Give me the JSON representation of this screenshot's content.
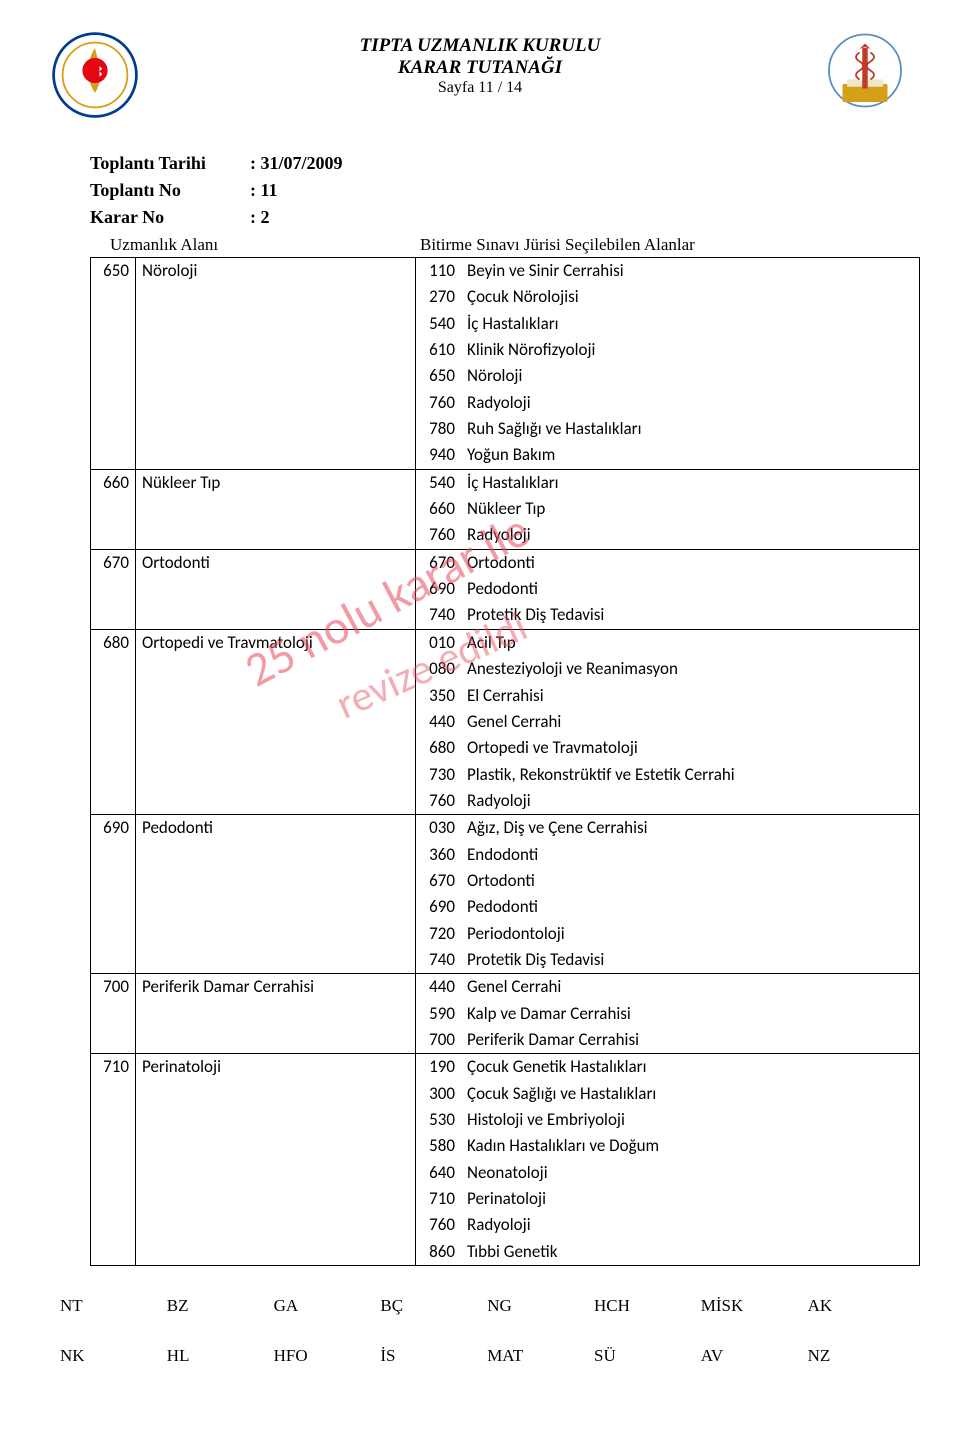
{
  "header": {
    "title_line1": "TIPTA UZMANLIK KURULU",
    "title_line2": "KARAR  TUTANAĞI",
    "page_line": "Sayfa 11 / 14"
  },
  "meta": {
    "date_label": "Toplantı Tarihi",
    "date_value": ": 31/07/2009",
    "meeting_label": "Toplantı No",
    "meeting_value": ": 11",
    "decision_label": "Karar No",
    "decision_value": ": 2"
  },
  "table_headers": {
    "left": "Uzmanlık Alanı",
    "right": "Bitirme Sınavı Jürisi Seçilebilen Alanlar"
  },
  "watermark1": "25 nolu karar ile",
  "watermark2": "revize edildi",
  "rows": [
    {
      "code": "650",
      "name": "Nöroloji",
      "subs": [
        {
          "c": "110",
          "n": "Beyin ve Sinir Cerrahisi"
        },
        {
          "c": "270",
          "n": "Çocuk Nörolojisi"
        },
        {
          "c": "540",
          "n": "İç Hastalıkları"
        },
        {
          "c": "610",
          "n": "Klinik Nörofizyoloji"
        },
        {
          "c": "650",
          "n": "Nöroloji"
        },
        {
          "c": "760",
          "n": "Radyoloji"
        },
        {
          "c": "780",
          "n": "Ruh Sağlığı ve Hastalıkları"
        },
        {
          "c": "940",
          "n": "Yoğun Bakım"
        }
      ]
    },
    {
      "code": "660",
      "name": "Nükleer Tıp",
      "subs": [
        {
          "c": "540",
          "n": "İç Hastalıkları"
        },
        {
          "c": "660",
          "n": "Nükleer Tıp"
        },
        {
          "c": "760",
          "n": "Radyoloji"
        }
      ]
    },
    {
      "code": "670",
      "name": "Ortodonti",
      "subs": [
        {
          "c": "670",
          "n": "Ortodonti"
        },
        {
          "c": "690",
          "n": "Pedodonti"
        },
        {
          "c": "740",
          "n": "Protetik Diş Tedavisi"
        }
      ]
    },
    {
      "code": "680",
      "name": "Ortopedi ve Travmatoloji",
      "subs": [
        {
          "c": "010",
          "n": "Acil Tıp"
        },
        {
          "c": "080",
          "n": "Anesteziyoloji ve Reanimasyon"
        },
        {
          "c": "350",
          "n": "El Cerrahisi"
        },
        {
          "c": "440",
          "n": "Genel Cerrahi"
        },
        {
          "c": "680",
          "n": "Ortopedi ve Travmatoloji"
        },
        {
          "c": "730",
          "n": "Plastik, Rekonstrüktif ve Estetik Cerrahi"
        },
        {
          "c": "760",
          "n": "Radyoloji"
        }
      ]
    },
    {
      "code": "690",
      "name": "Pedodonti",
      "subs": [
        {
          "c": "030",
          "n": "Ağız, Diş ve Çene Cerrahisi"
        },
        {
          "c": "360",
          "n": "Endodonti"
        },
        {
          "c": "670",
          "n": "Ortodonti"
        },
        {
          "c": "690",
          "n": "Pedodonti"
        },
        {
          "c": "720",
          "n": "Periodontoloji"
        },
        {
          "c": "740",
          "n": "Protetik Diş Tedavisi"
        }
      ]
    },
    {
      "code": "700",
      "name": "Periferik Damar Cerrahisi",
      "subs": [
        {
          "c": "440",
          "n": "Genel Cerrahi"
        },
        {
          "c": "590",
          "n": "Kalp ve Damar Cerrahisi"
        },
        {
          "c": "700",
          "n": "Periferik Damar Cerrahisi"
        }
      ]
    },
    {
      "code": "710",
      "name": "Perinatoloji",
      "subs": [
        {
          "c": "190",
          "n": "Çocuk Genetik Hastalıkları"
        },
        {
          "c": "300",
          "n": "Çocuk Sağlığı ve Hastalıkları"
        },
        {
          "c": "530",
          "n": "Histoloji ve Embriyoloji"
        },
        {
          "c": "580",
          "n": "Kadın Hastalıkları ve Doğum"
        },
        {
          "c": "640",
          "n": "Neonatoloji"
        },
        {
          "c": "710",
          "n": "Perinatoloji"
        },
        {
          "c": "760",
          "n": "Radyoloji"
        },
        {
          "c": "860",
          "n": "Tıbbi Genetik"
        }
      ]
    }
  ],
  "footer": {
    "row1": [
      "NT",
      "BZ",
      "GA",
      "BÇ",
      "NG",
      "HCH",
      "MİSK",
      "AK"
    ],
    "row2": [
      "NK",
      "HL",
      "HFO",
      "İS",
      "MAT",
      "SÜ",
      "AV",
      "NZ"
    ]
  }
}
